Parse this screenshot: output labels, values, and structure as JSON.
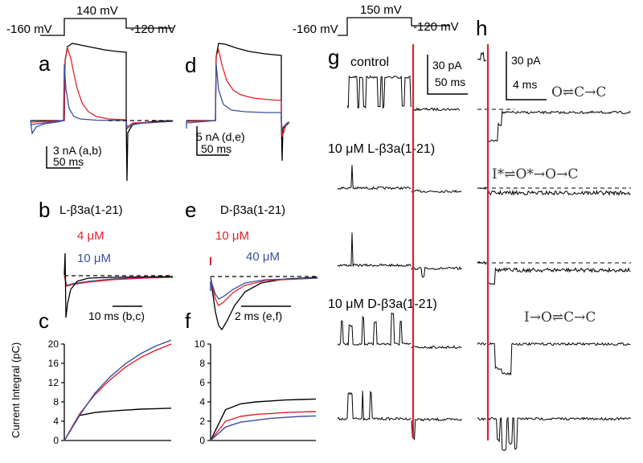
{
  "colors": {
    "control": "#000000",
    "low": "#e0202a",
    "high": "#3b4fa0",
    "marker": "#e0202a"
  },
  "protocol_left": {
    "hold": "-160 mV",
    "step": "140 mV",
    "tail": "-120 mV"
  },
  "protocol_right": {
    "hold": "-160 mV",
    "step": "150 mV",
    "tail": "-120 mV"
  },
  "panels": {
    "a": "a",
    "b": "b",
    "c": "c",
    "d": "d",
    "e": "e",
    "f": "f",
    "g": "g",
    "h": "h"
  },
  "scalebars": {
    "a_current": "3 nA (a,b)",
    "a_time": "50 ms",
    "d_current": "5 nA (d,e)",
    "d_time": "50 ms",
    "b_time": "10 ms (b,c)",
    "e_time": "2 ms (e,f)",
    "g_current": "30 pA",
    "g_time": "50 ms",
    "h_current": "30 pA",
    "h_time": "4 ms"
  },
  "legend_b": {
    "title": "L-β3a(1-21)",
    "low": "4 μM",
    "high": "10 μM"
  },
  "legend_e": {
    "title": "D-β3a(1-21)",
    "low": "10 μM",
    "high": "40 μM"
  },
  "g_labels": {
    "control": "control",
    "l_peptide": "10 μM L-β3a(1-21)",
    "d_peptide": "10 μM D-β3a(1-21)"
  },
  "schemes": {
    "control": "O⇌C→C",
    "l_peptide": "I*⇌O*→O→C",
    "d_peptide": "I→O⇌C→C"
  },
  "chart_data": [
    {
      "type": "line",
      "panel": "c",
      "ylabel": "Current Integral (pC)",
      "ylim": [
        0,
        20
      ],
      "yticks": [
        0,
        4,
        8,
        12,
        16,
        20
      ],
      "series": [
        {
          "color": "control",
          "values": [
            0,
            5.2,
            5.8,
            6.1,
            6.3,
            6.5,
            6.6,
            6.7
          ]
        },
        {
          "color": "low",
          "values": [
            0,
            5.5,
            9.5,
            12.6,
            15.2,
            17.2,
            18.7,
            20.0
          ]
        },
        {
          "color": "high",
          "values": [
            0,
            5.2,
            9.8,
            13.2,
            15.9,
            18.0,
            19.6,
            20.8
          ]
        }
      ]
    },
    {
      "type": "line",
      "panel": "f",
      "ylim": [
        0,
        10
      ],
      "yticks": [
        0,
        2,
        4,
        6,
        8,
        10
      ],
      "series": [
        {
          "color": "control",
          "values": [
            0,
            3.2,
            3.8,
            4.0,
            4.1,
            4.2,
            4.25,
            4.3
          ]
        },
        {
          "color": "low",
          "values": [
            0,
            2.0,
            2.5,
            2.7,
            2.8,
            2.9,
            2.95,
            3.0
          ]
        },
        {
          "color": "high",
          "values": [
            0,
            1.4,
            1.9,
            2.1,
            2.3,
            2.4,
            2.5,
            2.55
          ]
        }
      ]
    }
  ]
}
